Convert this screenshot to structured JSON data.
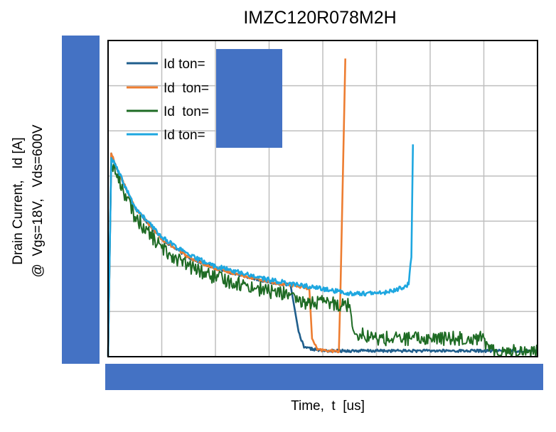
{
  "chart_data": {
    "type": "line",
    "title": "IMZC120R078M2H",
    "xlabel": "Time,  t  [us]",
    "ylabel_line1": "Drain Current,   Id [A]",
    "ylabel_line2": "@  Vgs=18V,   Vds=600V",
    "xlim": [
      0,
      8
    ],
    "ylim": [
      0,
      7
    ],
    "grid": true,
    "legend_position": "top-left",
    "series": [
      {
        "name": "Id ton=",
        "color": "#1f5e8c",
        "noise": 0.03,
        "points": [
          [
            0,
            0
          ],
          [
            0.06,
            4.5
          ],
          [
            0.15,
            4.2
          ],
          [
            0.5,
            3.3
          ],
          [
            1,
            2.6
          ],
          [
            1.5,
            2.2
          ],
          [
            2,
            1.95
          ],
          [
            2.5,
            1.8
          ],
          [
            3,
            1.65
          ],
          [
            3.4,
            1.58
          ],
          [
            3.55,
            0.55
          ],
          [
            3.65,
            0.2
          ],
          [
            4,
            0.13
          ],
          [
            5,
            0.13
          ],
          [
            6,
            0.13
          ],
          [
            7,
            0.13
          ],
          [
            8,
            0.13
          ]
        ]
      },
      {
        "name": "Id  ton=",
        "color": "#ed7d31",
        "noise": 0.03,
        "points": [
          [
            0,
            0
          ],
          [
            0.06,
            4.5
          ],
          [
            0.15,
            4.2
          ],
          [
            0.5,
            3.3
          ],
          [
            1,
            2.6
          ],
          [
            1.5,
            2.2
          ],
          [
            2,
            1.95
          ],
          [
            2.5,
            1.8
          ],
          [
            3,
            1.65
          ],
          [
            3.5,
            1.57
          ],
          [
            3.75,
            1.5
          ],
          [
            3.8,
            0.4
          ],
          [
            3.9,
            0.15
          ],
          [
            4.15,
            0.13
          ],
          [
            4.3,
            0.1
          ],
          [
            4.33,
            1.5
          ],
          [
            4.42,
            6.6
          ]
        ]
      },
      {
        "name": "Id  ton=",
        "color": "#1e6b24",
        "noise": 0.16,
        "points": [
          [
            0,
            0
          ],
          [
            0.06,
            4.3
          ],
          [
            0.15,
            4.05
          ],
          [
            0.5,
            3.1
          ],
          [
            1,
            2.4
          ],
          [
            1.5,
            2.0
          ],
          [
            2,
            1.75
          ],
          [
            2.5,
            1.6
          ],
          [
            3,
            1.45
          ],
          [
            3.4,
            1.38
          ],
          [
            3.5,
            1.2
          ],
          [
            4.0,
            1.2
          ],
          [
            4.5,
            1.15
          ],
          [
            4.58,
            0.55
          ],
          [
            5,
            0.4
          ],
          [
            6,
            0.4
          ],
          [
            7,
            0.42
          ],
          [
            7.1,
            0.13
          ],
          [
            8,
            0.13
          ]
        ]
      },
      {
        "name": "Id ton=",
        "color": "#1ea7e0",
        "noise": 0.05,
        "points": [
          [
            0,
            0
          ],
          [
            0.06,
            4.4
          ],
          [
            0.15,
            4.2
          ],
          [
            0.5,
            3.3
          ],
          [
            1,
            2.65
          ],
          [
            1.5,
            2.25
          ],
          [
            2,
            2.0
          ],
          [
            2.5,
            1.85
          ],
          [
            3,
            1.7
          ],
          [
            3.5,
            1.6
          ],
          [
            4,
            1.5
          ],
          [
            4.5,
            1.4
          ],
          [
            5,
            1.4
          ],
          [
            5.3,
            1.45
          ],
          [
            5.6,
            1.6
          ],
          [
            5.65,
            2.2
          ],
          [
            5.68,
            4.7
          ]
        ]
      }
    ]
  }
}
